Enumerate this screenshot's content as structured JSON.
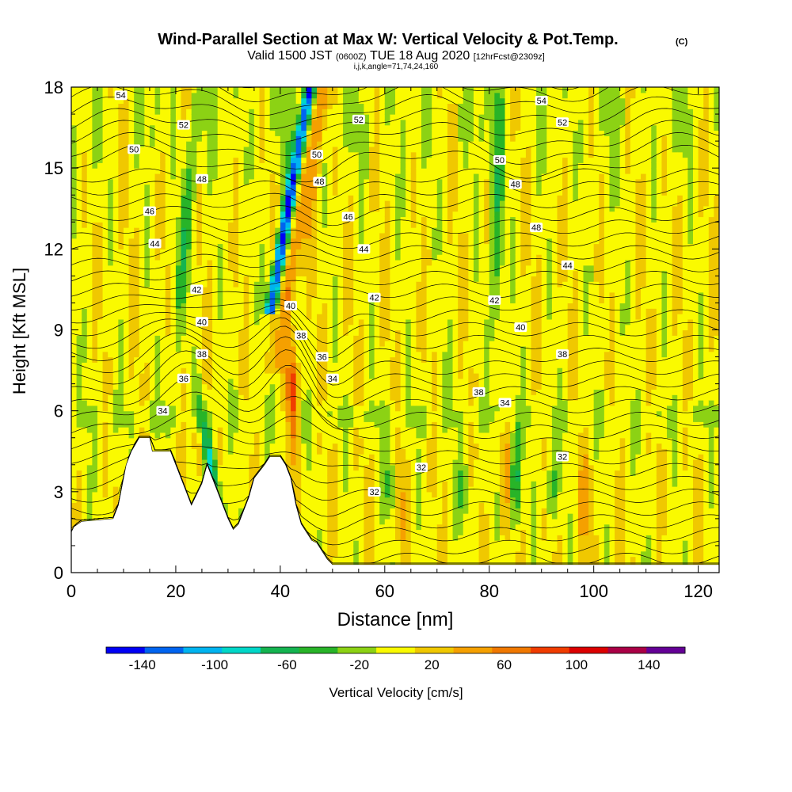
{
  "chart_data": {
    "type": "heatmap",
    "title": "Wind-Parallel Section at Max W: Vertical Velocity & Pot.Temp.",
    "title_mark": "(C)",
    "subtitle": {
      "prefix": "Valid 1500 JST",
      "utc": "(0600Z)",
      "date": "TUE 18 Aug 2020",
      "fcst": "[12hrFcst@2309z]"
    },
    "subtitle2": "i,j,k,angle=71,74,24,160",
    "xlabel": "Distance [nm]",
    "ylabel": "Height [Kft MSL]",
    "xlim": [
      0,
      124
    ],
    "ylim": [
      0,
      18
    ],
    "x_ticks": [
      0,
      20,
      40,
      60,
      80,
      100,
      120
    ],
    "y_ticks": [
      0,
      3,
      6,
      9,
      12,
      15,
      18
    ],
    "colorbar": {
      "label": "Vertical Velocity [cm/s]",
      "tick_labels": [
        "-140",
        "-100",
        "-60",
        "-20",
        "20",
        "60",
        "100",
        "140"
      ],
      "tick_values": [
        -140,
        -100,
        -60,
        -20,
        20,
        60,
        100,
        140
      ],
      "range": [
        -160,
        160
      ],
      "colors": [
        "#0000f5",
        "#0064f0",
        "#00b4f0",
        "#00d7c8",
        "#14b450",
        "#28b428",
        "#8cd214",
        "#fafa00",
        "#f0c800",
        "#f5a000",
        "#f07800",
        "#f03c00",
        "#dc0000",
        "#aa0046",
        "#640096"
      ]
    },
    "terrain": [
      [
        0,
        1.5
      ],
      [
        0.5,
        1.7
      ],
      [
        2,
        1.9
      ],
      [
        8,
        2
      ],
      [
        9,
        2.5
      ],
      [
        9.5,
        3
      ],
      [
        10,
        3.5
      ],
      [
        10.5,
        4
      ],
      [
        11.5,
        4.5
      ],
      [
        13,
        5
      ],
      [
        15,
        5
      ],
      [
        15.5,
        4.5
      ],
      [
        19,
        4.5
      ],
      [
        20,
        4
      ],
      [
        21,
        3.5
      ],
      [
        22,
        3
      ],
      [
        23,
        2.5
      ],
      [
        24,
        2.9
      ],
      [
        25,
        3.3
      ],
      [
        26,
        4
      ],
      [
        27,
        3.5
      ],
      [
        28,
        3
      ],
      [
        29,
        2.5
      ],
      [
        30,
        2
      ],
      [
        31,
        1.6
      ],
      [
        32,
        1.8
      ],
      [
        33,
        2.3
      ],
      [
        34,
        2.8
      ],
      [
        35,
        3.5
      ],
      [
        37,
        4
      ],
      [
        38,
        4.3
      ],
      [
        40,
        4.3
      ],
      [
        41,
        4
      ],
      [
        42,
        3.5
      ],
      [
        43,
        2.5
      ],
      [
        44,
        1.8
      ],
      [
        45,
        1.5
      ],
      [
        46,
        1.2
      ],
      [
        47,
        1.1
      ],
      [
        48,
        0.8
      ],
      [
        49,
        0.5
      ],
      [
        50,
        0.3
      ],
      [
        124,
        0.3
      ]
    ],
    "theta_levels": [
      32,
      34,
      36,
      38,
      40,
      42,
      44,
      46,
      48,
      50,
      52,
      54
    ],
    "theta_labels": [
      {
        "v": "54",
        "x": 9.5,
        "y": 17.7
      },
      {
        "v": "52",
        "x": 21.5,
        "y": 16.6
      },
      {
        "v": "50",
        "x": 12,
        "y": 15.7
      },
      {
        "v": "48",
        "x": 25,
        "y": 14.6
      },
      {
        "v": "46",
        "x": 15,
        "y": 13.4
      },
      {
        "v": "44",
        "x": 16,
        "y": 12.2
      },
      {
        "v": "42",
        "x": 24,
        "y": 10.5
      },
      {
        "v": "40",
        "x": 25,
        "y": 9.3
      },
      {
        "v": "38",
        "x": 25,
        "y": 8.1
      },
      {
        "v": "36",
        "x": 21.5,
        "y": 7.2
      },
      {
        "v": "34",
        "x": 17.5,
        "y": 6
      },
      {
        "v": "52",
        "x": 55,
        "y": 16.8
      },
      {
        "v": "50",
        "x": 47,
        "y": 15.5
      },
      {
        "v": "48",
        "x": 47.5,
        "y": 14.5
      },
      {
        "v": "46",
        "x": 53,
        "y": 13.2
      },
      {
        "v": "44",
        "x": 56,
        "y": 12
      },
      {
        "v": "42",
        "x": 58,
        "y": 10.2
      },
      {
        "v": "40",
        "x": 42,
        "y": 9.9
      },
      {
        "v": "38",
        "x": 44,
        "y": 8.8
      },
      {
        "v": "36",
        "x": 48,
        "y": 8
      },
      {
        "v": "34",
        "x": 50,
        "y": 7.2
      },
      {
        "v": "32",
        "x": 58,
        "y": 3
      },
      {
        "v": "32",
        "x": 67,
        "y": 3.9
      },
      {
        "v": "54",
        "x": 90,
        "y": 17.5
      },
      {
        "v": "52",
        "x": 94,
        "y": 16.7
      },
      {
        "v": "50",
        "x": 82,
        "y": 15.3
      },
      {
        "v": "48",
        "x": 85,
        "y": 14.4
      },
      {
        "v": "48",
        "x": 89,
        "y": 12.8
      },
      {
        "v": "44",
        "x": 95,
        "y": 11.4
      },
      {
        "v": "42",
        "x": 81,
        "y": 10.1
      },
      {
        "v": "40",
        "x": 86,
        "y": 9.1
      },
      {
        "v": "38",
        "x": 94,
        "y": 8.1
      },
      {
        "v": "38",
        "x": 78,
        "y": 6.7
      },
      {
        "v": "34",
        "x": 83,
        "y": 6.3
      },
      {
        "v": "32",
        "x": 94,
        "y": 4.3
      }
    ]
  }
}
